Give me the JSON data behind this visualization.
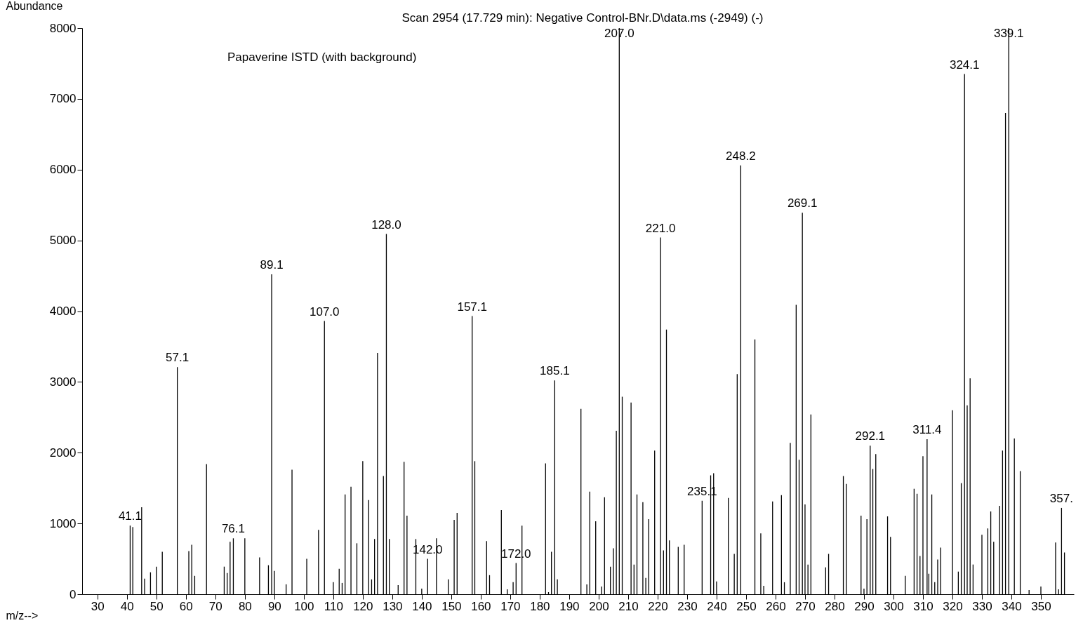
{
  "chart_data": {
    "type": "bar",
    "title": "Scan 2954 (17.729 min): Negative Control-BNr.D\\data.ms (-2949) (-)",
    "xlabel": "m/z-->",
    "ylabel": "Abundance",
    "annotations": [
      "Papaverine ISTD (with background)",
      {
        "text": "41.1",
        "x": 41.1,
        "y": 970
      },
      {
        "text": "57.1",
        "x": 57.1,
        "y": 3210
      },
      {
        "text": "76.1",
        "x": 76.1,
        "y": 790
      },
      {
        "text": "89.1",
        "x": 89.1,
        "y": 4520
      },
      {
        "text": "107.0",
        "x": 107.0,
        "y": 3860
      },
      {
        "text": "128.0",
        "x": 128.0,
        "y": 5090
      },
      {
        "text": "142.0",
        "x": 142.0,
        "y": 500
      },
      {
        "text": "157.1",
        "x": 157.1,
        "y": 3930
      },
      {
        "text": "172.0",
        "x": 172.0,
        "y": 440
      },
      {
        "text": "185.1",
        "x": 185.1,
        "y": 3020
      },
      {
        "text": "207.0",
        "x": 207.0,
        "y": 8000
      },
      {
        "text": "221.0",
        "x": 221.0,
        "y": 5040
      },
      {
        "text": "235.1",
        "x": 235.1,
        "y": 1320
      },
      {
        "text": "248.2",
        "x": 248.2,
        "y": 6060
      },
      {
        "text": "269.1",
        "x": 269.1,
        "y": 5390
      },
      {
        "text": "292.1",
        "x": 292.1,
        "y": 2100
      },
      {
        "text": "311.4",
        "x": 311.4,
        "y": 2190
      },
      {
        "text": "324.1",
        "x": 324.1,
        "y": 7350
      },
      {
        "text": "339.1",
        "x": 339.1,
        "y": 8000
      },
      {
        "text": "357.",
        "x": 357,
        "y": 1220
      }
    ],
    "x": [
      41.1,
      42,
      45,
      46,
      48,
      50,
      52,
      57.1,
      61,
      62,
      63,
      67,
      73,
      74,
      75,
      76.1,
      80,
      85,
      88,
      89.1,
      90,
      94,
      96,
      101,
      105,
      107.0,
      110,
      112,
      113,
      114,
      116,
      118,
      120,
      122,
      123,
      124,
      125,
      127,
      128.0,
      129,
      132,
      134,
      135,
      138,
      140,
      142.0,
      145,
      149,
      151,
      152,
      157.1,
      158,
      162,
      163,
      167,
      169,
      171,
      172.0,
      174,
      182,
      183,
      184,
      185.1,
      186,
      194,
      196,
      197,
      199,
      201,
      202,
      204,
      205,
      206,
      207.0,
      208,
      211,
      212,
      213,
      215,
      216,
      217,
      219,
      221.0,
      222,
      223,
      224,
      227,
      229,
      235.1,
      238,
      239,
      240,
      244,
      246,
      247,
      248.2,
      253,
      255,
      256,
      259,
      262,
      263,
      265,
      267,
      268,
      269.1,
      270,
      271,
      272,
      277,
      278,
      283,
      284,
      289,
      290,
      291,
      292.1,
      293,
      294,
      298,
      299,
      304,
      307,
      308,
      309,
      310,
      311.4,
      312,
      313,
      314,
      315,
      316,
      320,
      322,
      323,
      324.1,
      325,
      326,
      327,
      330,
      332,
      333,
      334,
      336,
      337,
      338,
      339.1,
      341,
      343,
      346,
      350,
      355,
      356,
      357,
      358
    ],
    "values": [
      970,
      950,
      1230,
      220,
      310,
      390,
      600,
      3210,
      610,
      700,
      260,
      1840,
      390,
      300,
      740,
      790,
      790,
      520,
      410,
      4520,
      330,
      140,
      1760,
      500,
      910,
      3860,
      170,
      360,
      160,
      1410,
      1520,
      720,
      1880,
      1330,
      210,
      780,
      3410,
      1670,
      5090,
      780,
      130,
      1870,
      1110,
      780,
      80,
      500,
      790,
      210,
      1050,
      1150,
      3930,
      1880,
      750,
      270,
      1190,
      70,
      170,
      440,
      970,
      1850,
      30,
      600,
      3020,
      210,
      2620,
      140,
      1450,
      1030,
      110,
      1370,
      390,
      650,
      2310,
      8000,
      2790,
      2710,
      420,
      1410,
      1300,
      230,
      1060,
      2030,
      5040,
      620,
      3740,
      760,
      670,
      700,
      1320,
      1680,
      1710,
      180,
      1360,
      570,
      3110,
      6060,
      3600,
      860,
      120,
      1310,
      1400,
      170,
      2140,
      4090,
      1900,
      5390,
      1270,
      420,
      2540,
      380,
      570,
      1670,
      1560,
      1110,
      80,
      1060,
      2100,
      1770,
      1980,
      1100,
      810,
      260,
      1490,
      1420,
      540,
      1950,
      2190,
      290,
      1410,
      170,
      490,
      660,
      2600,
      320,
      1570,
      7350,
      2670,
      3050,
      420,
      840,
      930,
      1170,
      740,
      1250,
      2030,
      6800,
      8000,
      2200,
      1740,
      60,
      110,
      730,
      70,
      1220,
      590
    ],
    "color": "#000000",
    "xlim": [
      26,
      360
    ],
    "xticks": [
      30,
      40,
      50,
      60,
      70,
      80,
      90,
      100,
      110,
      120,
      130,
      140,
      150,
      160,
      170,
      180,
      190,
      200,
      210,
      220,
      230,
      240,
      250,
      260,
      270,
      280,
      290,
      300,
      310,
      320,
      330,
      340,
      350
    ],
    "ylim": [
      0,
      8000
    ],
    "yticks": [
      0,
      1000,
      2000,
      3000,
      4000,
      5000,
      6000,
      7000,
      8000
    ]
  }
}
